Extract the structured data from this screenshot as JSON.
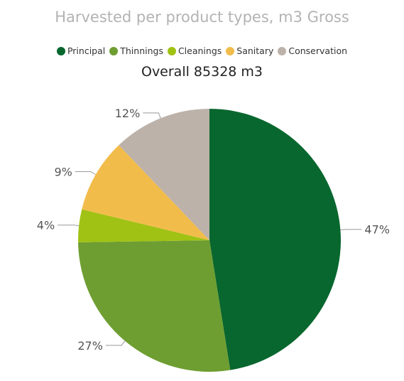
{
  "chart_data": {
    "type": "pie",
    "title": "Harvested per product types, m3 Gross",
    "subtitle": "Overall 85328 m3",
    "legend_position": "top",
    "categories": [
      "Principal",
      "Thinnings",
      "Cleanings",
      "Sanitary",
      "Conservation"
    ],
    "values": [
      47,
      27,
      4,
      9,
      12
    ],
    "value_labels": [
      "47%",
      "27%",
      "4%",
      "9%",
      "12%"
    ],
    "unit": "%",
    "colors": [
      "#08672e",
      "#6e9e31",
      "#a0c214",
      "#f2bc4b",
      "#bcb2aa"
    ]
  }
}
